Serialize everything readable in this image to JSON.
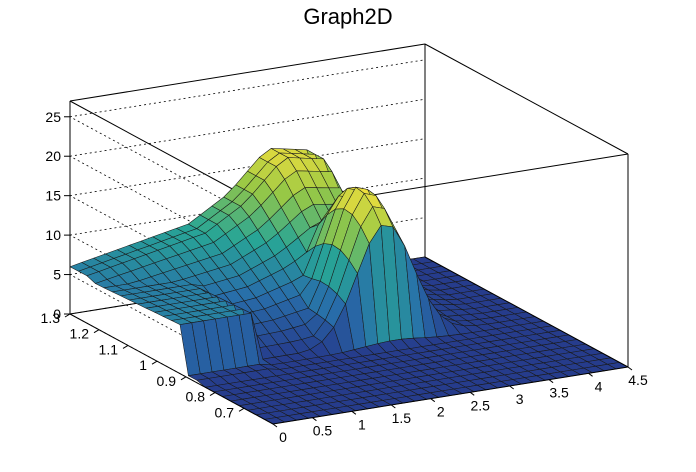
{
  "window": {
    "title": "Graph2D"
  },
  "chart_data": {
    "type": "surface",
    "title": "Graph2D",
    "xlabel": "",
    "ylabel": "",
    "zlabel": "",
    "xlim": [
      0,
      4.5
    ],
    "ylim": [
      0.6,
      1.3
    ],
    "zlim": [
      0,
      27
    ],
    "x_ticks": [
      0,
      0.5,
      1,
      1.5,
      2,
      2.5,
      3,
      3.5,
      4,
      4.5
    ],
    "y_ticks": [
      0.7,
      0.8,
      0.9,
      1,
      1.1,
      1.2,
      1.3
    ],
    "z_ticks": [
      0,
      5,
      10,
      15,
      20,
      25
    ],
    "x_tick_labels": [
      "0",
      "0.5",
      "1",
      "1.5",
      "2",
      "2.5",
      "3",
      "3.5",
      "4",
      "4.5"
    ],
    "y_tick_labels": [
      "0.7",
      "0.8",
      "0.9",
      "1",
      "1.1",
      "1.2",
      "1.3"
    ],
    "z_tick_labels": [
      "0",
      "5",
      "10",
      "15",
      "20",
      "25"
    ],
    "colormap": "viridis-like (blue-green-yellow)",
    "grid": true,
    "legend": "none",
    "approx_features": {
      "near_zero_floor_z": 0,
      "plateau_z_at_small_x": 6,
      "ridge_along_x": [
        {
          "x": 0.0,
          "z": 6
        },
        {
          "x": 0.5,
          "z": 7
        },
        {
          "x": 1.0,
          "z": 8
        },
        {
          "x": 1.5,
          "z": 9
        },
        {
          "x": 2.0,
          "z": 12
        },
        {
          "x": 2.5,
          "z": 17
        },
        {
          "x": 3.0,
          "z": 16
        },
        {
          "x": 3.5,
          "z": 2
        },
        {
          "x": 4.0,
          "z": 0
        },
        {
          "x": 4.5,
          "z": 0
        }
      ],
      "peak_max_z": 18,
      "peak_location": {
        "x": 2.6,
        "y": 1.0
      }
    }
  }
}
